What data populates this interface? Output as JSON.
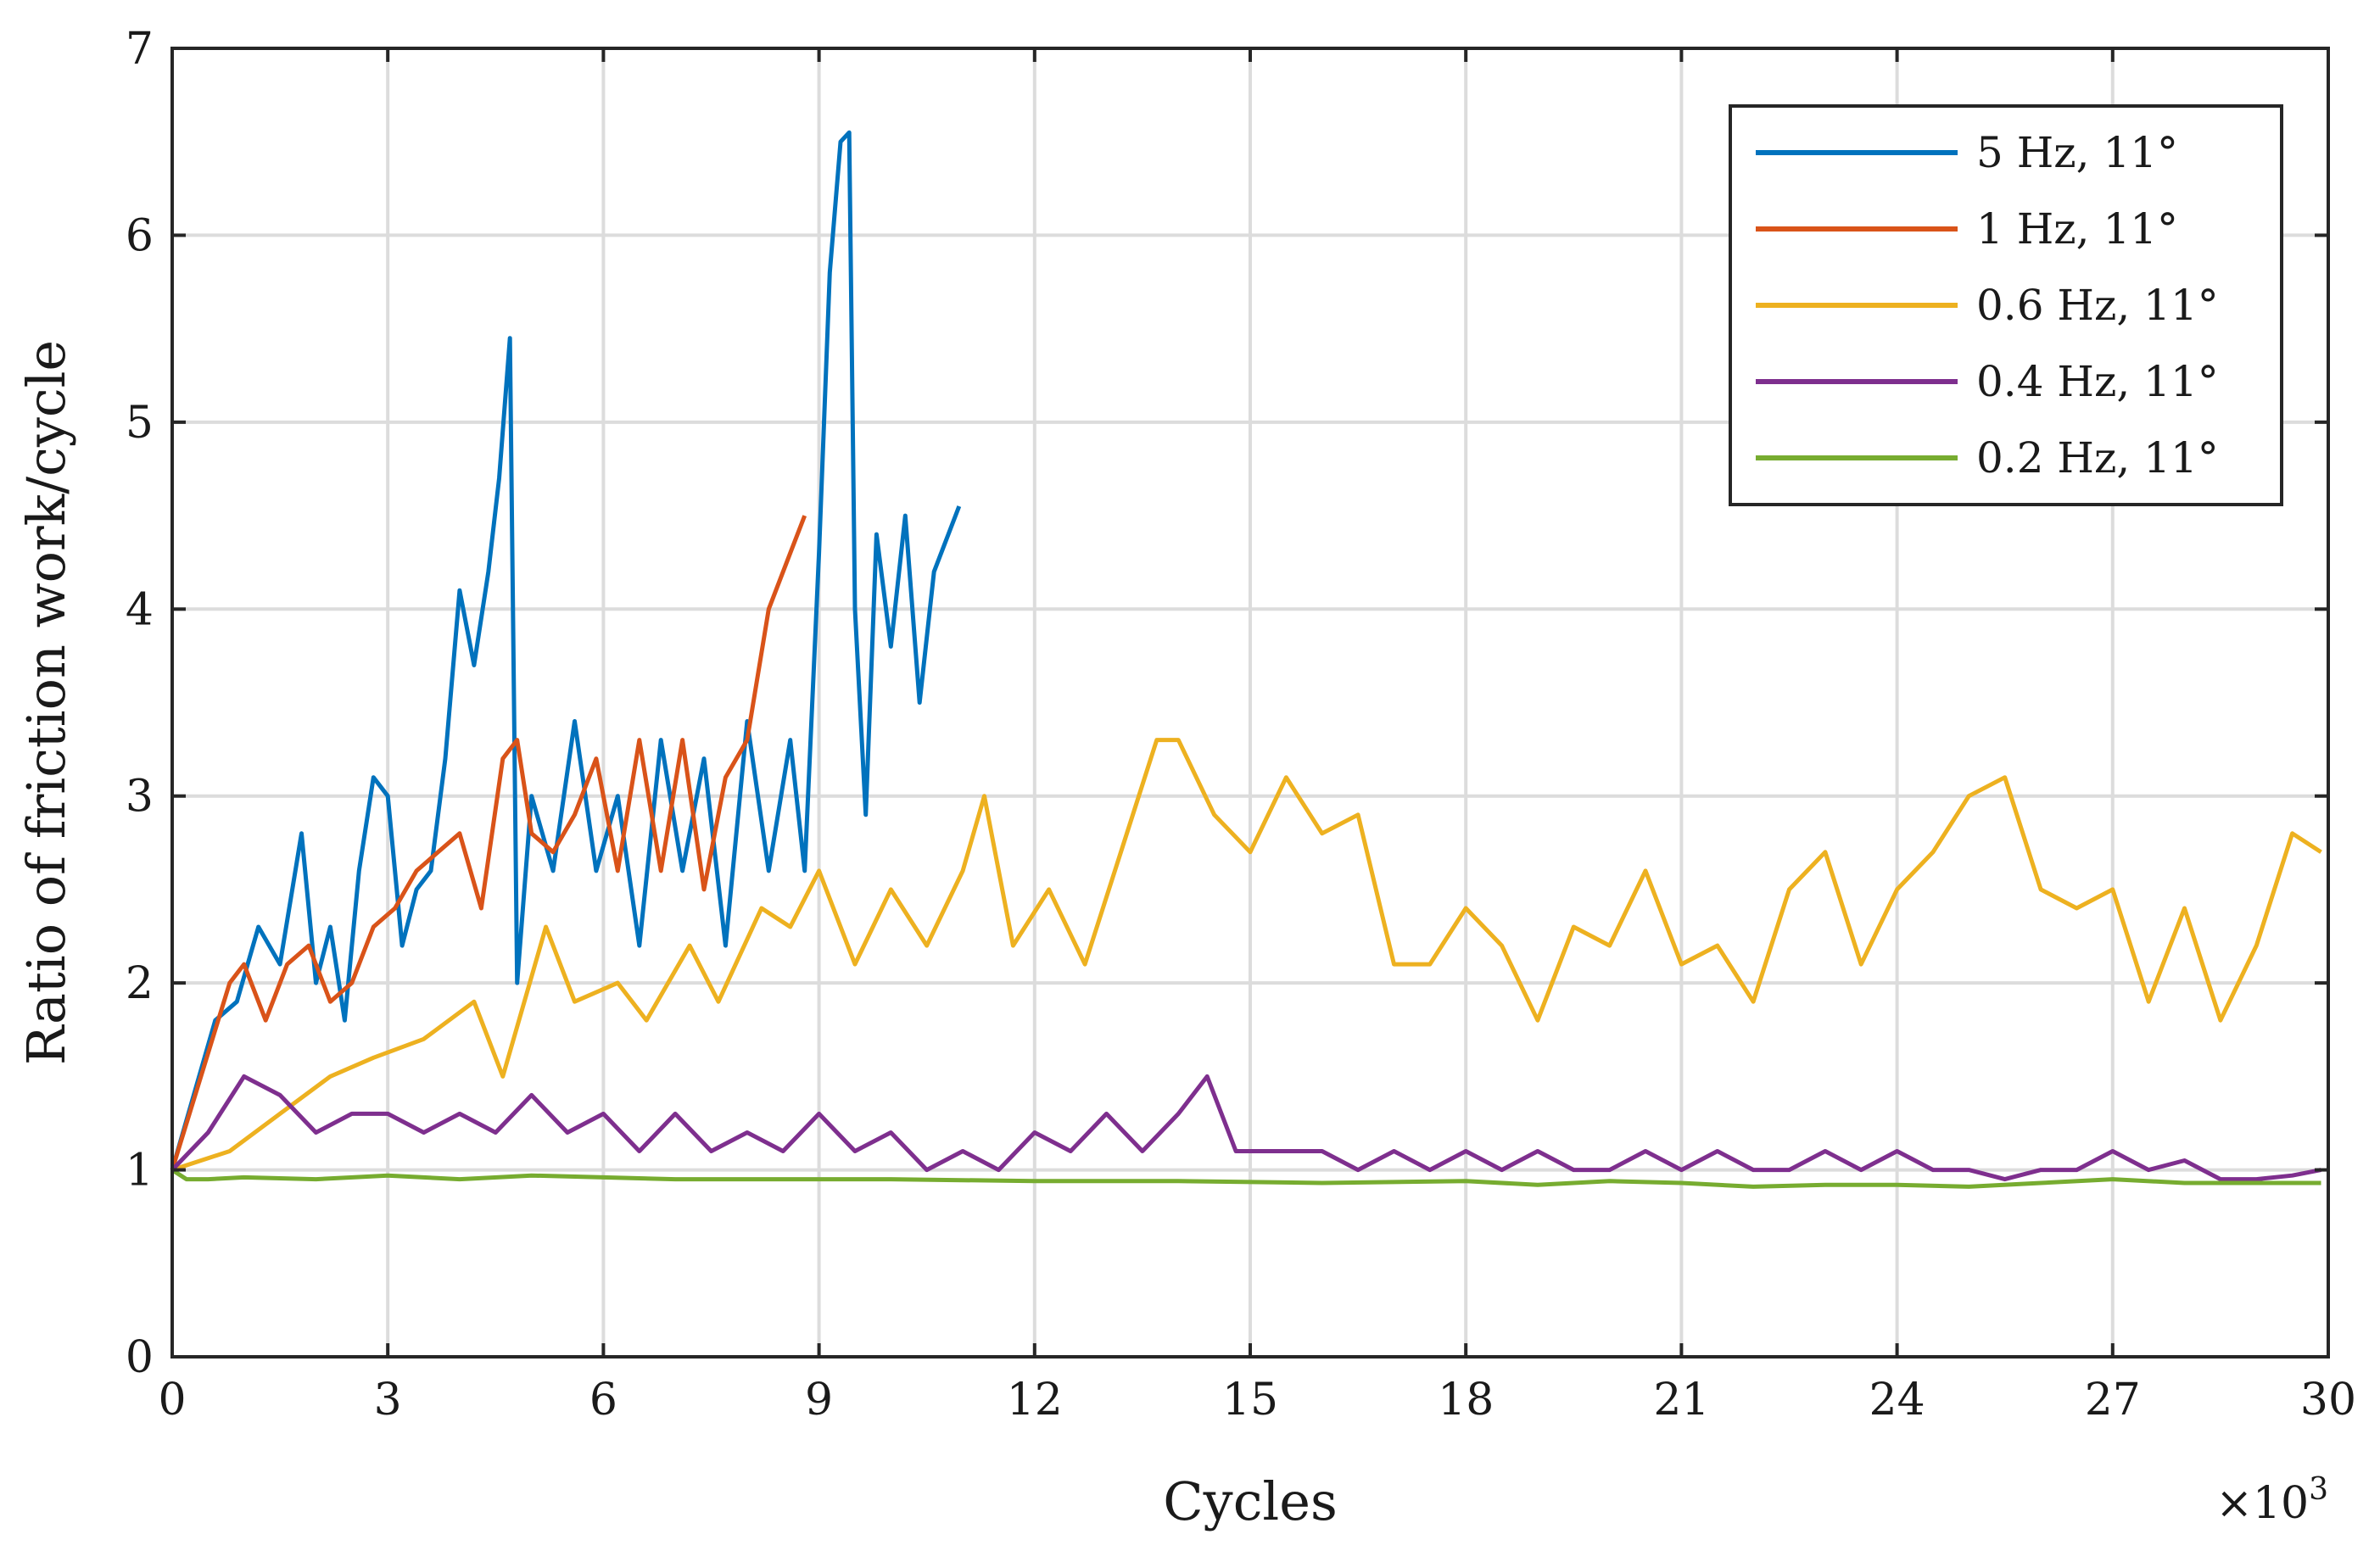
{
  "chart_data": {
    "type": "line",
    "xlabel": "Cycles",
    "ylabel": "Ratio of friction work/cycle",
    "x_multiplier_label": "×10",
    "x_multiplier_exponent": "3",
    "xlim": [
      0,
      30
    ],
    "ylim": [
      0,
      7
    ],
    "xticks": [
      0,
      3,
      6,
      9,
      12,
      15,
      18,
      21,
      24,
      27,
      30
    ],
    "yticks": [
      0,
      1,
      2,
      3,
      4,
      5,
      6,
      7
    ],
    "grid": true,
    "legend_position": "top-right",
    "series": [
      {
        "name": "5 Hz, 11°",
        "color": "#0072BD",
        "x": [
          0,
          0.3,
          0.6,
          0.9,
          1.2,
          1.5,
          1.8,
          2.0,
          2.2,
          2.4,
          2.6,
          2.8,
          3.0,
          3.2,
          3.4,
          3.6,
          3.8,
          4.0,
          4.2,
          4.4,
          4.55,
          4.7,
          4.8,
          5.0,
          5.3,
          5.6,
          5.9,
          6.2,
          6.5,
          6.8,
          7.1,
          7.4,
          7.7,
          8.0,
          8.3,
          8.6,
          8.8,
          9.0,
          9.15,
          9.3,
          9.42,
          9.5,
          9.65,
          9.8,
          10.0,
          10.2,
          10.4,
          10.6,
          10.8,
          10.95
        ],
        "y": [
          1.0,
          1.4,
          1.8,
          1.9,
          2.3,
          2.1,
          2.8,
          2.0,
          2.3,
          1.8,
          2.6,
          3.1,
          3.0,
          2.2,
          2.5,
          2.6,
          3.2,
          4.1,
          3.7,
          4.2,
          4.7,
          5.45,
          2.0,
          3.0,
          2.6,
          3.4,
          2.6,
          3.0,
          2.2,
          3.3,
          2.6,
          3.2,
          2.2,
          3.4,
          2.6,
          3.3,
          2.6,
          4.3,
          5.8,
          6.5,
          6.55,
          4.0,
          2.9,
          4.4,
          3.8,
          4.5,
          3.5,
          4.2,
          4.4,
          4.55
        ]
      },
      {
        "name": "1 Hz, 11°",
        "color": "#D95319",
        "x": [
          0,
          0.4,
          0.8,
          1.0,
          1.3,
          1.6,
          1.9,
          2.2,
          2.5,
          2.8,
          3.1,
          3.4,
          3.7,
          4.0,
          4.3,
          4.6,
          4.8,
          5.0,
          5.3,
          5.6,
          5.9,
          6.2,
          6.5,
          6.8,
          7.1,
          7.4,
          7.7,
          8.0,
          8.3,
          8.6,
          8.8
        ],
        "y": [
          1.0,
          1.5,
          2.0,
          2.1,
          1.8,
          2.1,
          2.2,
          1.9,
          2.0,
          2.3,
          2.4,
          2.6,
          2.7,
          2.8,
          2.4,
          3.2,
          3.3,
          2.8,
          2.7,
          2.9,
          3.2,
          2.6,
          3.3,
          2.6,
          3.3,
          2.5,
          3.1,
          3.3,
          4.0,
          4.3,
          4.5
        ]
      },
      {
        "name": "0.6 Hz, 11°",
        "color": "#EDB120",
        "x": [
          0,
          0.8,
          1.5,
          2.2,
          2.8,
          3.5,
          4.2,
          4.6,
          5.2,
          5.6,
          6.2,
          6.6,
          7.2,
          7.6,
          8.2,
          8.6,
          9.0,
          9.5,
          10.0,
          10.5,
          11.0,
          11.3,
          11.7,
          12.2,
          12.7,
          13.2,
          13.7,
          14.0,
          14.5,
          15.0,
          15.5,
          16.0,
          16.5,
          17.0,
          17.5,
          18.0,
          18.5,
          19.0,
          19.5,
          20.0,
          20.5,
          21.0,
          21.5,
          22.0,
          22.5,
          23.0,
          23.5,
          24.0,
          24.5,
          25.0,
          25.5,
          26.0,
          26.5,
          27.0,
          27.5,
          28.0,
          28.5,
          29.0,
          29.5,
          29.9
        ],
        "y": [
          1.0,
          1.1,
          1.3,
          1.5,
          1.6,
          1.7,
          1.9,
          1.5,
          2.3,
          1.9,
          2.0,
          1.8,
          2.2,
          1.9,
          2.4,
          2.3,
          2.6,
          2.1,
          2.5,
          2.2,
          2.6,
          3.0,
          2.2,
          2.5,
          2.1,
          2.7,
          3.3,
          3.3,
          2.9,
          2.7,
          3.1,
          2.8,
          2.9,
          2.1,
          2.1,
          2.4,
          2.2,
          1.8,
          2.3,
          2.2,
          2.6,
          2.1,
          2.2,
          1.9,
          2.5,
          2.7,
          2.1,
          2.5,
          2.7,
          3.0,
          3.1,
          2.5,
          2.4,
          2.5,
          1.9,
          2.4,
          1.8,
          2.2,
          2.8,
          2.7
        ]
      },
      {
        "name": "0.4 Hz, 11°",
        "color": "#7E2F8E",
        "x": [
          0,
          0.5,
          1.0,
          1.5,
          2.0,
          2.5,
          3.0,
          3.5,
          4.0,
          4.5,
          5.0,
          5.5,
          6.0,
          6.5,
          7.0,
          7.5,
          8.0,
          8.5,
          9.0,
          9.5,
          10.0,
          10.5,
          11.0,
          11.5,
          12.0,
          12.5,
          13.0,
          13.5,
          14.0,
          14.4,
          14.8,
          15.5,
          16.0,
          16.5,
          17.0,
          17.5,
          18.0,
          18.5,
          19.0,
          19.5,
          20.0,
          20.5,
          21.0,
          21.5,
          22.0,
          22.5,
          23.0,
          23.5,
          24.0,
          24.5,
          25.0,
          25.5,
          26.0,
          26.5,
          27.0,
          27.5,
          28.0,
          28.5,
          29.0,
          29.5,
          29.9
        ],
        "y": [
          1.0,
          1.2,
          1.5,
          1.4,
          1.2,
          1.3,
          1.3,
          1.2,
          1.3,
          1.2,
          1.4,
          1.2,
          1.3,
          1.1,
          1.3,
          1.1,
          1.2,
          1.1,
          1.3,
          1.1,
          1.2,
          1.0,
          1.1,
          1.0,
          1.2,
          1.1,
          1.3,
          1.1,
          1.3,
          1.5,
          1.1,
          1.1,
          1.1,
          1.0,
          1.1,
          1.0,
          1.1,
          1.0,
          1.1,
          1.0,
          1.0,
          1.1,
          1.0,
          1.1,
          1.0,
          1.0,
          1.1,
          1.0,
          1.1,
          1.0,
          1.0,
          0.95,
          1.0,
          1.0,
          1.1,
          1.0,
          1.05,
          0.95,
          0.95,
          0.97,
          1.0
        ]
      },
      {
        "name": "0.2 Hz, 11°",
        "color": "#77AC30",
        "x": [
          0,
          0.2,
          0.5,
          1.0,
          2.0,
          3.0,
          4.0,
          5.0,
          6.0,
          7.0,
          8.0,
          9.0,
          10.0,
          12.0,
          14.0,
          16.0,
          18.0,
          19.0,
          20.0,
          21.0,
          22.0,
          23.0,
          24.0,
          25.0,
          26.0,
          27.0,
          28.0,
          29.0,
          29.9
        ],
        "y": [
          1.0,
          0.95,
          0.95,
          0.96,
          0.95,
          0.97,
          0.95,
          0.97,
          0.96,
          0.95,
          0.95,
          0.95,
          0.95,
          0.94,
          0.94,
          0.93,
          0.94,
          0.92,
          0.94,
          0.93,
          0.91,
          0.92,
          0.92,
          0.91,
          0.93,
          0.95,
          0.93,
          0.93,
          0.93
        ]
      }
    ]
  }
}
